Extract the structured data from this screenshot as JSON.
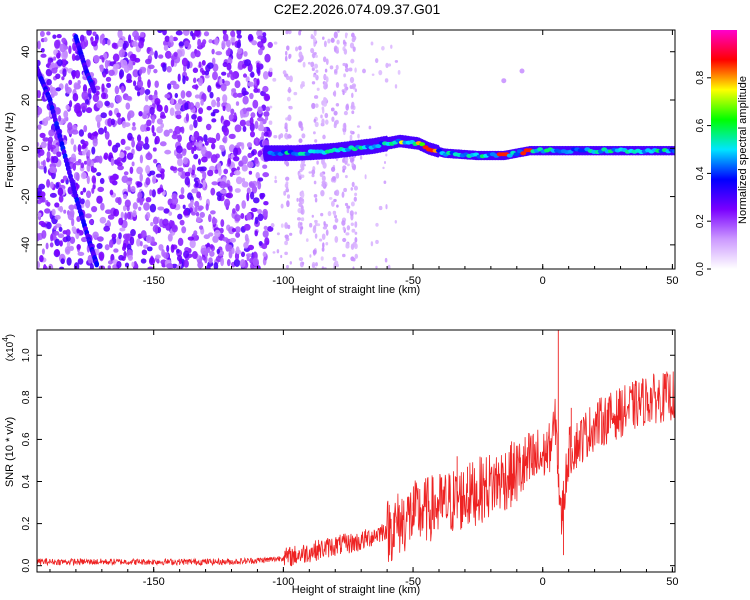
{
  "figure_title": "C2E2.2026.074.09.37.G01",
  "chart_data": [
    {
      "type": "heatmap",
      "title": "C2E2.2026.074.09.37.G01",
      "xlabel": "Height of straight line (km)",
      "ylabel": "Frequency (Hz)",
      "xlim": [
        -195,
        51
      ],
      "ylim": [
        -50,
        49
      ],
      "x_ticks": [
        -150,
        -100,
        -50,
        0,
        50
      ],
      "y_ticks": [
        -40,
        -20,
        0,
        20,
        40
      ],
      "x_tick_labels": [
        "-150",
        "-100",
        "-50",
        "0",
        "50"
      ],
      "y_tick_labels": [
        "-40",
        "-20",
        "0",
        "20",
        "40"
      ],
      "colorbar": {
        "label": "Normalized spectral amplitude",
        "range": [
          0,
          1
        ],
        "ticks": [
          0.0,
          0.2,
          0.4,
          0.6,
          0.8
        ],
        "tick_labels": [
          "0.0",
          "0.2",
          "0.4",
          "0.6",
          "0.8"
        ],
        "colors": [
          "#ffffff",
          "#cc99ff",
          "#7a00ff",
          "#0000ff",
          "#00e5ff",
          "#00ff00",
          "#ffff00",
          "#ff0000",
          "#ff00cc"
        ]
      },
      "features": [
        {
          "name": "carrier",
          "points": [
            [
              -107,
              -2
            ],
            [
              -95,
              -2
            ],
            [
              -80,
              -1
            ],
            [
              -65,
              1
            ],
            [
              -55,
              3
            ],
            [
              -48,
              2
            ],
            [
              -44,
              0
            ],
            [
              -38,
              -2
            ],
            [
              -25,
              -3
            ],
            [
              -15,
              -3
            ],
            [
              -5,
              -1
            ],
            [
              10,
              -1
            ],
            [
              30,
              -1
            ],
            [
              50,
              -1
            ]
          ]
        },
        {
          "name": "diagonal_streak",
          "points": [
            [
              -195,
              33
            ],
            [
              -190,
              20
            ],
            [
              -185,
              0
            ],
            [
              -180,
              -20
            ],
            [
              -175,
              -38
            ],
            [
              -172,
              -48
            ]
          ]
        },
        {
          "name": "diagonal_streak_upper",
          "points": [
            [
              -180,
              46
            ],
            [
              -176,
              32
            ],
            [
              -173,
              24
            ]
          ]
        },
        {
          "name": "scattered_dots",
          "points": [
            [
              -15,
              28
            ],
            [
              -8,
              32
            ]
          ]
        }
      ]
    },
    {
      "type": "line",
      "title": "",
      "xlabel": "Height of straight line (km)",
      "ylabel": "SNR (10 * v/v)",
      "y_scale_label": "(x10",
      "y_scale_exponent": "4",
      "xlim": [
        -195,
        51
      ],
      "ylim": [
        -0.03,
        1.12
      ],
      "x_ticks": [
        -150,
        -100,
        -50,
        0,
        50
      ],
      "y_ticks": [
        0.0,
        0.2,
        0.4,
        0.6,
        0.8,
        1.0
      ],
      "x_tick_labels": [
        "-150",
        "-100",
        "-50",
        "0",
        "50"
      ],
      "y_tick_labels": [
        "0.0",
        "0.2",
        "0.4",
        "0.6",
        "0.8",
        "1.0"
      ],
      "color": "#ee2222",
      "series": [
        {
          "name": "SNR",
          "x": [
            -195,
            -180,
            -160,
            -140,
            -120,
            -105,
            -100,
            -90,
            -80,
            -70,
            -60,
            -50,
            -40,
            -30,
            -20,
            -10,
            -5,
            0,
            3,
            5,
            7,
            10,
            20,
            30,
            40,
            50
          ],
          "y": [
            0.02,
            0.02,
            0.02,
            0.02,
            0.02,
            0.03,
            0.04,
            0.07,
            0.1,
            0.12,
            0.18,
            0.26,
            0.3,
            0.34,
            0.4,
            0.46,
            0.5,
            0.53,
            0.58,
            0.7,
            0.22,
            0.55,
            0.68,
            0.74,
            0.8,
            0.82
          ]
        }
      ],
      "spikes": [
        [
          -57,
          0.26
        ],
        [
          -50,
          0.3
        ],
        [
          -36,
          0.42
        ],
        [
          -33,
          0.52
        ],
        [
          -29,
          0.47
        ],
        [
          -10,
          0.5
        ],
        [
          6,
          1.12
        ],
        [
          8,
          0.05
        ],
        [
          11,
          0.75
        ]
      ]
    }
  ]
}
